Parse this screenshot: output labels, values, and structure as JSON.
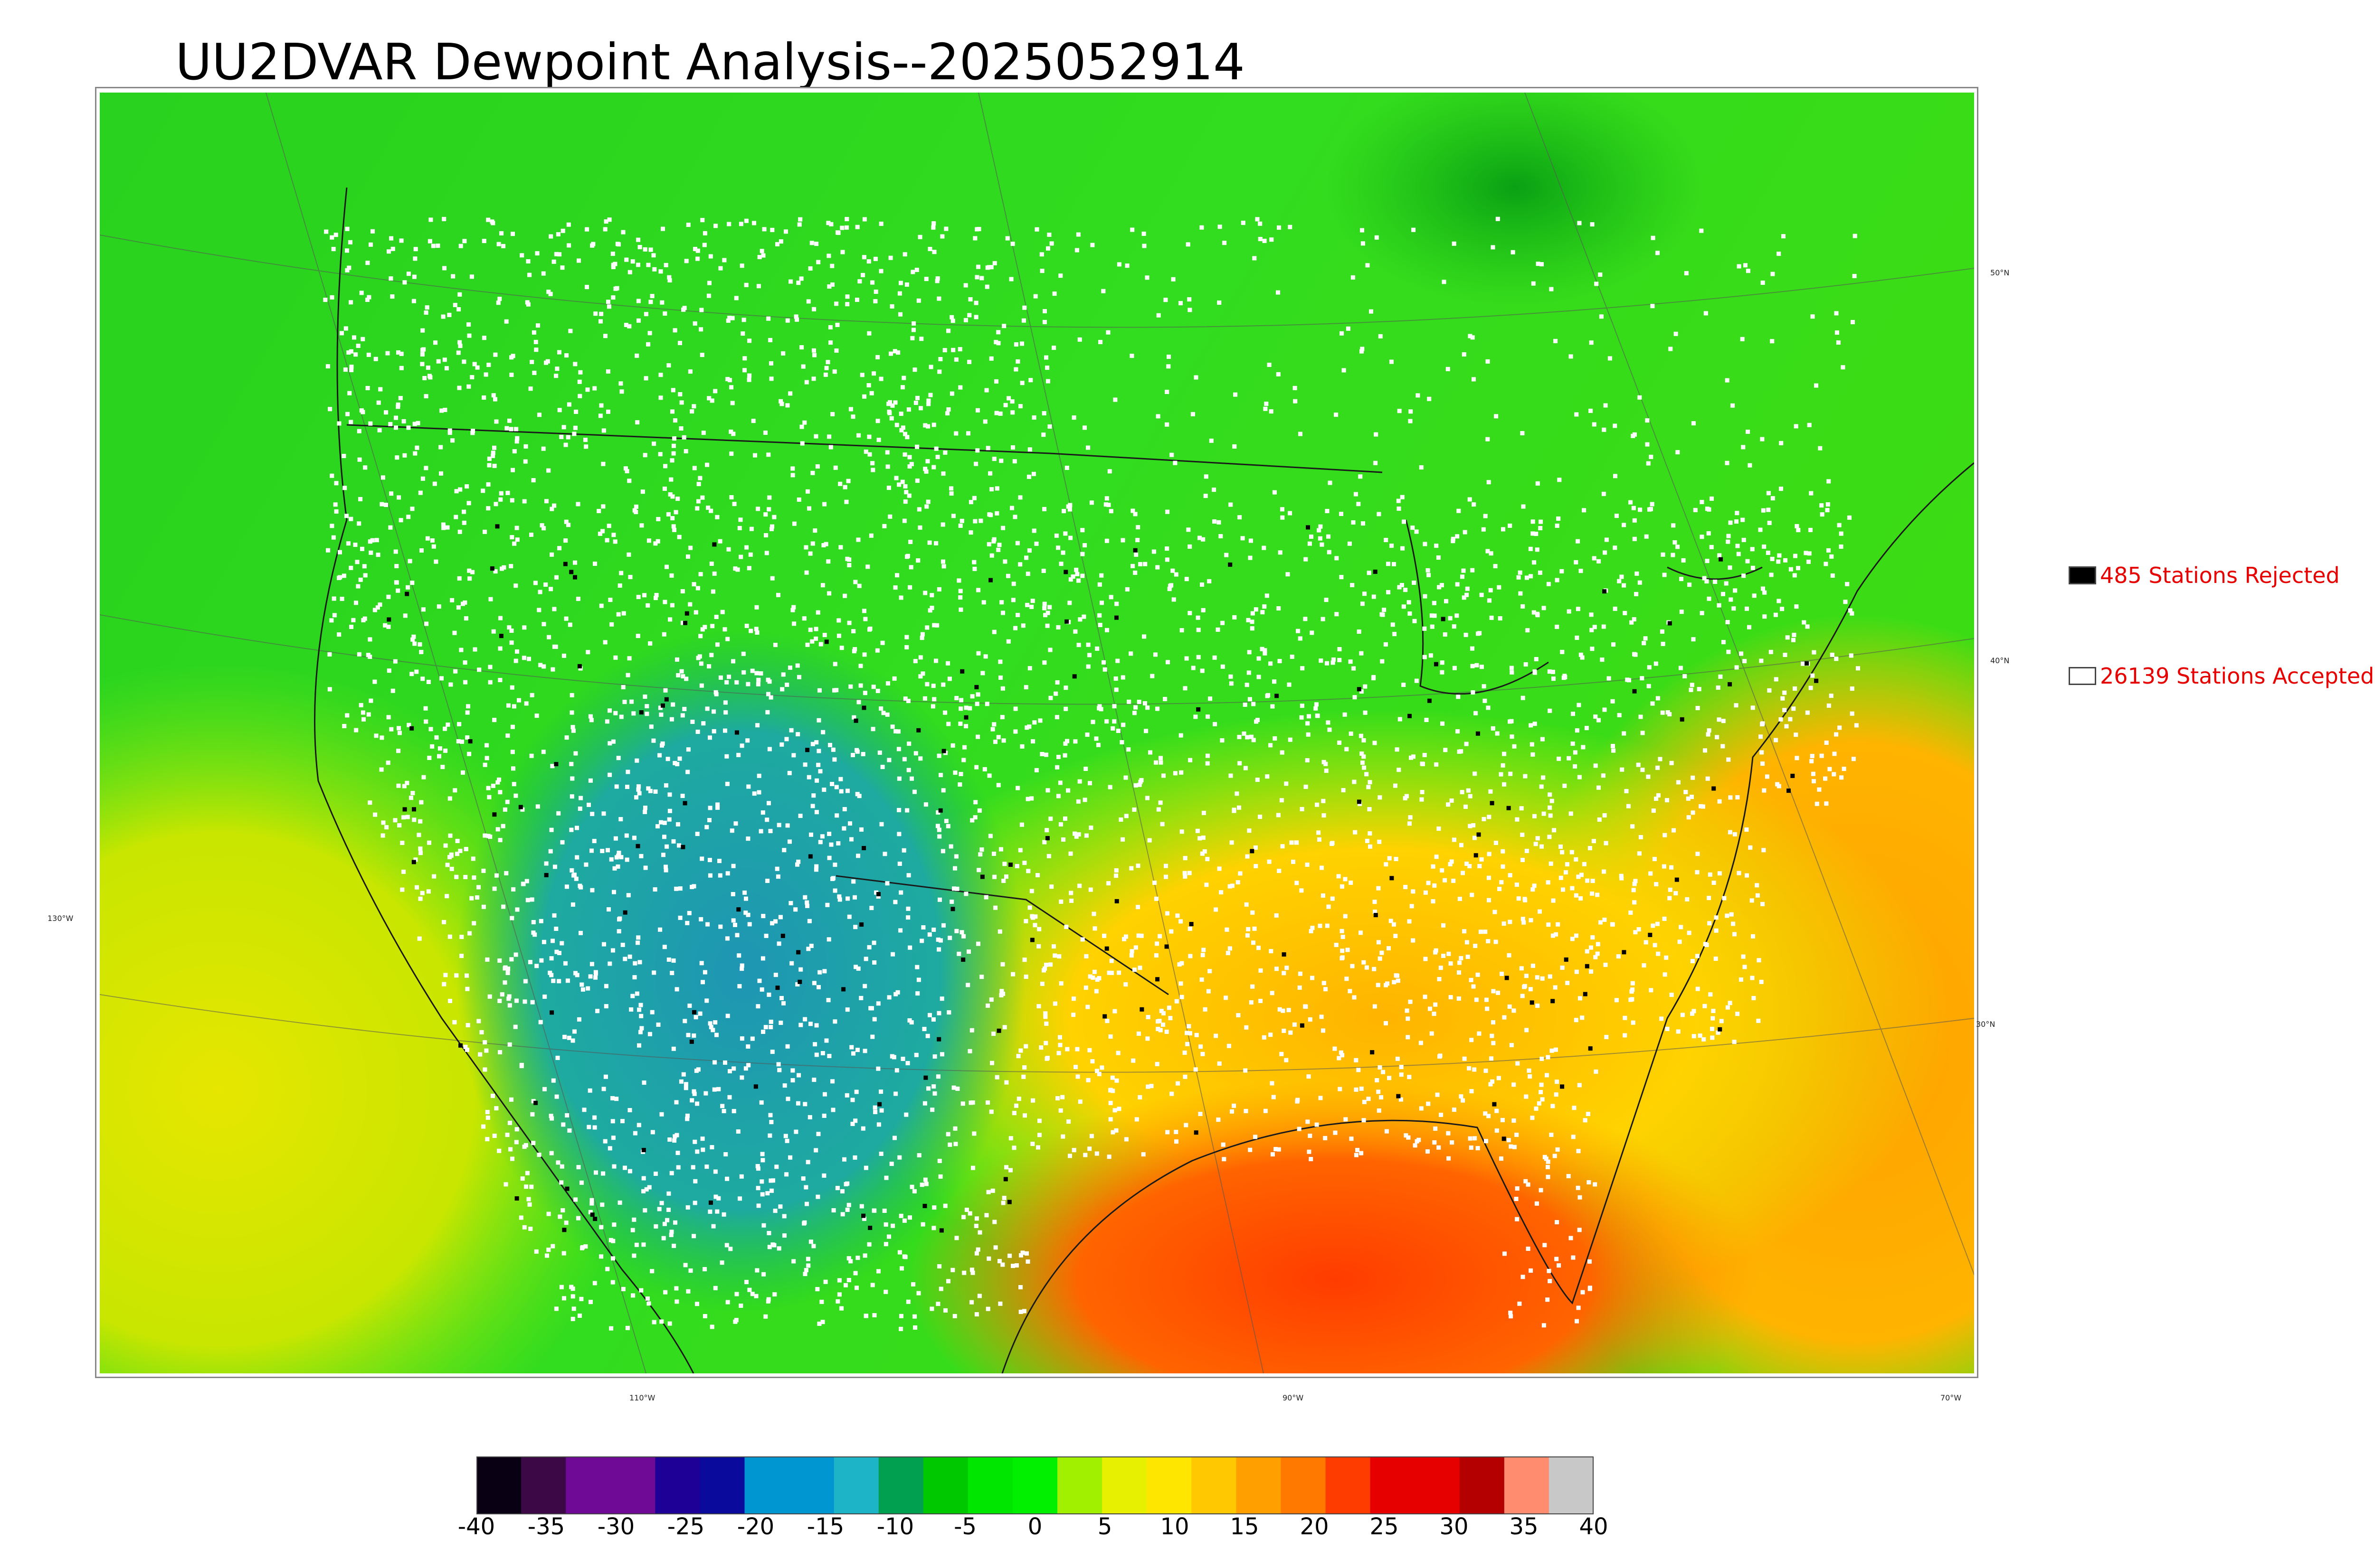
{
  "title": "UU2DVAR Dewpoint Analysis--2025052914",
  "legend": {
    "rejected": {
      "label": "485 Stations Rejected",
      "swatch_color": "#000000"
    },
    "accepted": {
      "label": "26139 Stations Accepted",
      "swatch_color": "#ffffff"
    }
  },
  "graticule": {
    "latitudes": [
      "50°N",
      "40°N",
      "30°N"
    ],
    "longitudes": [
      "130°W",
      "110°W",
      "90°W",
      "70°W"
    ]
  },
  "colorbar": {
    "ticks": [
      "-40",
      "-35",
      "-30",
      "-25",
      "-20",
      "-15",
      "-10",
      "-5",
      "0",
      "5",
      "10",
      "15",
      "20",
      "25",
      "30",
      "35",
      "40"
    ],
    "colors": [
      "#0a0014",
      "#3c0846",
      "#6e0a96",
      "#6e0a96",
      "#1e0096",
      "#0a0a9c",
      "#0096d2",
      "#0096d2",
      "#1eb4c8",
      "#00a050",
      "#00c800",
      "#00e600",
      "#00f000",
      "#a0f000",
      "#e6f000",
      "#ffe600",
      "#ffc800",
      "#ffa000",
      "#ff7800",
      "#ff3c00",
      "#e60000",
      "#e60000",
      "#b40000",
      "#ff8c6e",
      "#c8c8c8"
    ]
  },
  "colors": {
    "ocean_pacific": "#c8e600",
    "ocean_atlantic": "#ffb400",
    "gulf": "#ff6400",
    "land_north": "#28d21e",
    "land_west": "#14b414",
    "land_southwest": "#1ea0a0",
    "land_southeast": "#ffc800"
  }
}
